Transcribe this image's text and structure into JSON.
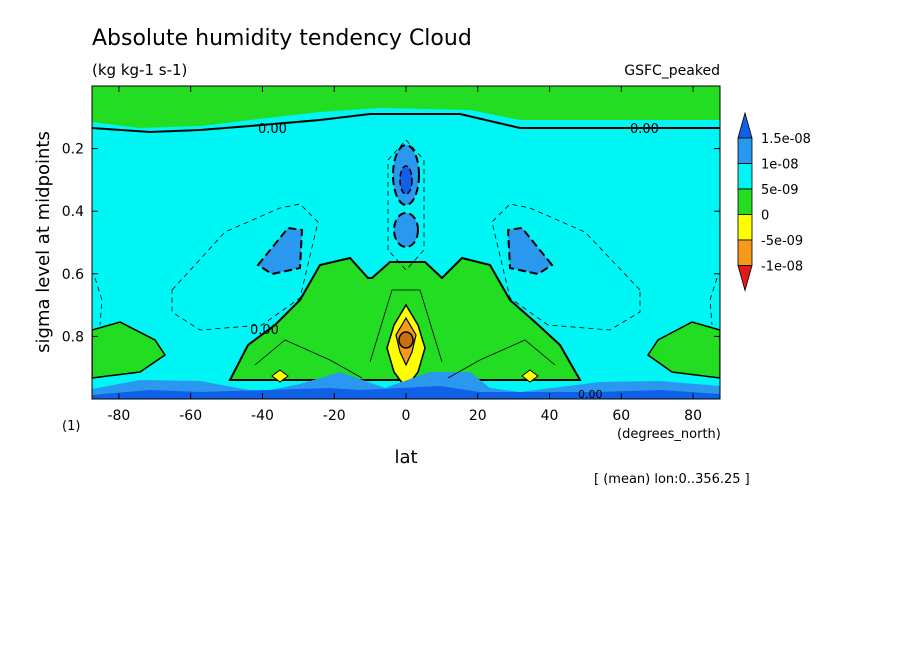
{
  "chart_data": {
    "type": "contour",
    "title": "Absolute humidity tendency Cloud",
    "units": "(kg kg-1 s-1)",
    "model_label": "GSFC_peaked",
    "xlabel": "lat",
    "ylabel": "sigma level at midpoints",
    "x_units": "(degrees_north)",
    "y_index_label": "(1)",
    "footnote": "[ (mean) lon:0..356.25 ]",
    "xlim": [
      -87.5,
      87.5
    ],
    "ylim": [
      0.0,
      1.0
    ],
    "y_inverted": true,
    "x_ticks": [
      -80,
      -60,
      -40,
      -20,
      0,
      20,
      40,
      60,
      80
    ],
    "y_ticks": [
      0.2,
      0.4,
      0.6,
      0.8
    ],
    "x_tick_labels": [
      "-80",
      "-60",
      "-40",
      "-20",
      "0",
      "20",
      "40",
      "60",
      "80"
    ],
    "y_tick_labels": [
      "0.2",
      "0.4",
      "0.6",
      "0.8"
    ],
    "contour_labels": [
      "0.00",
      "0.00",
      "0.00",
      "0.00"
    ],
    "colorbar": {
      "levels": [
        -1e-08,
        -5e-09,
        0,
        5e-09,
        1e-08,
        1.5e-08
      ],
      "labels": [
        "1.5e-08",
        "1e-08",
        "5e-09",
        "0",
        "-5e-09",
        "-1e-08"
      ],
      "colors": [
        "#e21b1b",
        "#f59a1a",
        "#ffff00",
        "#22dd22",
        "#00f5f5",
        "#2b98f0",
        "#1060e8"
      ]
    }
  }
}
